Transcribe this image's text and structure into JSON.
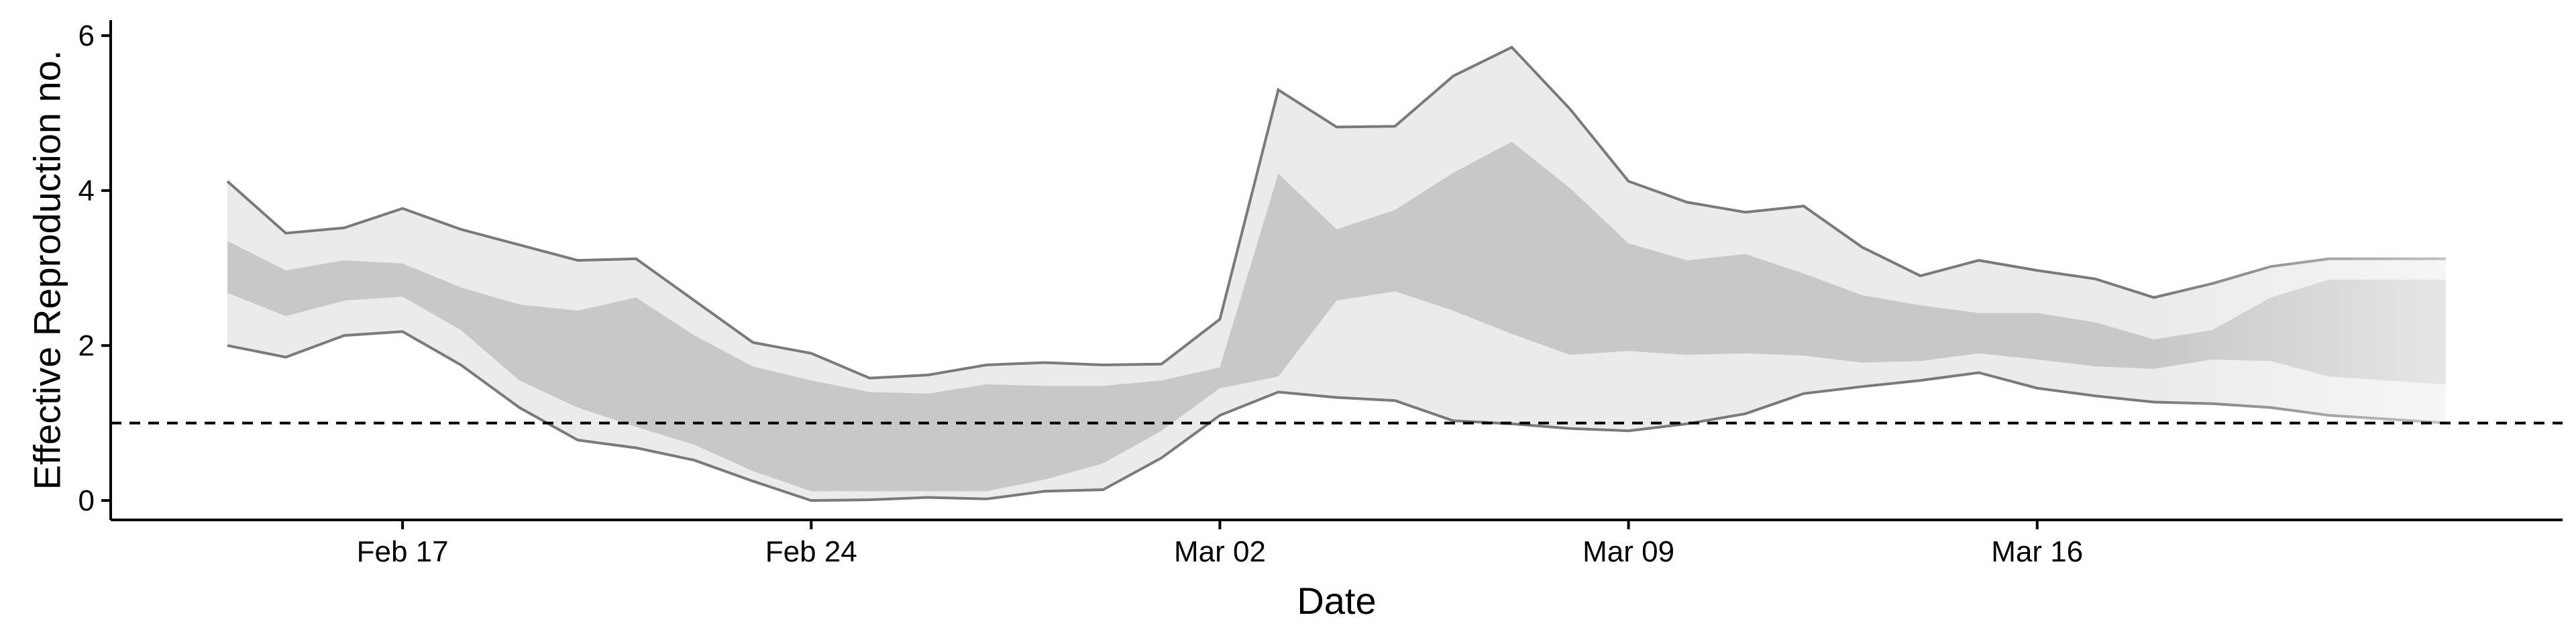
{
  "chart_data": {
    "type": "area",
    "title": "",
    "xlabel": "Date",
    "ylabel": "Effective Reproduction no.",
    "x_ticks": [
      "Feb 17",
      "Feb 24",
      "Mar 02",
      "Mar 09",
      "Mar 16"
    ],
    "y_ticks": [
      0,
      2,
      4,
      6
    ],
    "xlim": [
      "2020-02-12",
      "2020-03-25"
    ],
    "ylim": [
      -0.25,
      6.2
    ],
    "reference_line": {
      "y": 1,
      "style": "dashed"
    },
    "grid": false,
    "legend": "none",
    "colors": {
      "outer_band": "#ebebeb",
      "inner_band": "#c8c8c8",
      "band_edge": "#7a7a7a",
      "axis": "#000000"
    },
    "dates": [
      "2020-02-14",
      "2020-02-15",
      "2020-02-16",
      "2020-02-17",
      "2020-02-18",
      "2020-02-19",
      "2020-02-20",
      "2020-02-21",
      "2020-02-22",
      "2020-02-23",
      "2020-02-24",
      "2020-02-25",
      "2020-02-26",
      "2020-02-27",
      "2020-02-28",
      "2020-02-29",
      "2020-03-01",
      "2020-03-02",
      "2020-03-03",
      "2020-03-04",
      "2020-03-05",
      "2020-03-06",
      "2020-03-07",
      "2020-03-08",
      "2020-03-09",
      "2020-03-10",
      "2020-03-11",
      "2020-03-12",
      "2020-03-13",
      "2020-03-14",
      "2020-03-15",
      "2020-03-16",
      "2020-03-17",
      "2020-03-18",
      "2020-03-19",
      "2020-03-20",
      "2020-03-21",
      "2020-03-22",
      "2020-03-23"
    ],
    "series": [
      {
        "name": "",
        "band": "outer",
        "lower": [
          2.0,
          1.85,
          2.13,
          2.18,
          1.75,
          1.2,
          0.78,
          0.68,
          0.52,
          0.25,
          0.0,
          0.01,
          0.04,
          0.02,
          0.12,
          0.14,
          0.55,
          1.1,
          1.4,
          1.33,
          1.29,
          1.03,
          0.99,
          0.93,
          0.9,
          0.99,
          1.12,
          1.38,
          1.47,
          1.55,
          1.65,
          1.45,
          1.35,
          1.27,
          1.25,
          1.2,
          1.1,
          1.05,
          1.0
        ],
        "upper": [
          4.12,
          3.45,
          3.52,
          3.77,
          3.5,
          3.3,
          3.1,
          3.12,
          2.58,
          2.04,
          1.9,
          1.58,
          1.62,
          1.75,
          1.78,
          1.75,
          1.76,
          2.34,
          5.3,
          4.82,
          4.83,
          5.48,
          5.85,
          5.05,
          4.12,
          3.85,
          3.72,
          3.8,
          3.27,
          2.9,
          3.1,
          2.97,
          2.86,
          2.62,
          2.8,
          3.02,
          3.12,
          3.12,
          3.12
        ]
      },
      {
        "name": "",
        "band": "inner",
        "lower": [
          2.68,
          2.38,
          2.58,
          2.63,
          2.2,
          1.55,
          1.2,
          0.95,
          0.72,
          0.38,
          0.12,
          0.12,
          0.12,
          0.12,
          0.27,
          0.48,
          0.9,
          1.45,
          1.6,
          2.58,
          2.7,
          2.45,
          2.15,
          1.88,
          1.93,
          1.88,
          1.9,
          1.87,
          1.78,
          1.8,
          1.9,
          1.82,
          1.73,
          1.7,
          1.82,
          1.8,
          1.6,
          1.55,
          1.5
        ],
        "upper": [
          3.35,
          2.97,
          3.1,
          3.06,
          2.75,
          2.53,
          2.45,
          2.62,
          2.13,
          1.73,
          1.55,
          1.4,
          1.38,
          1.5,
          1.48,
          1.48,
          1.55,
          1.72,
          4.22,
          3.5,
          3.75,
          4.23,
          4.63,
          4.03,
          3.32,
          3.1,
          3.18,
          2.93,
          2.65,
          2.52,
          2.42,
          2.42,
          2.3,
          2.08,
          2.2,
          2.62,
          2.85,
          2.85,
          2.85
        ]
      }
    ]
  }
}
